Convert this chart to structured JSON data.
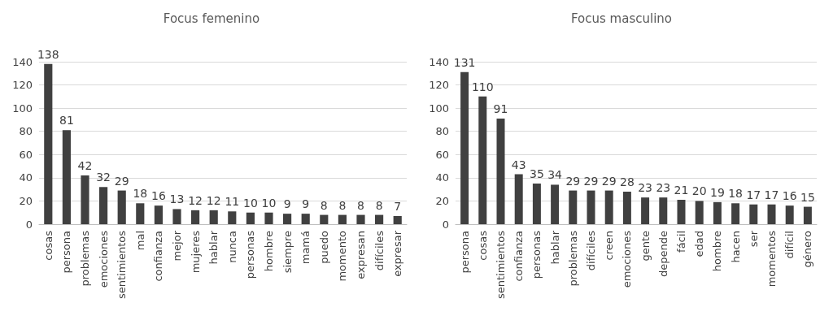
{
  "chart_data": [
    {
      "type": "bar",
      "title": "Focus femenino",
      "categories": [
        "cosas",
        "persona",
        "problemas",
        "emociones",
        "sentimientos",
        "mal",
        "confianza",
        "mejor",
        "mujeres",
        "hablar",
        "nunca",
        "personas",
        "hombre",
        "siempre",
        "mamá",
        "puedo",
        "momento",
        "expresan",
        "difíciles",
        "expresar"
      ],
      "values": [
        138,
        81,
        42,
        32,
        29,
        18,
        16,
        13,
        12,
        12,
        11,
        10,
        10,
        9,
        9,
        8,
        8,
        8,
        8,
        7
      ],
      "color": "#404040",
      "ylim": [
        0,
        140
      ],
      "yticks": [
        0,
        20,
        40,
        60,
        80,
        100,
        120,
        140
      ],
      "grid": "y",
      "data_labels": true
    },
    {
      "type": "bar",
      "title": "Focus masculino",
      "categories": [
        "persona",
        "cosas",
        "sentimientos",
        "confianza",
        "personas",
        "hablar",
        "problemas",
        "difíciles",
        "creen",
        "emociones",
        "gente",
        "depende",
        "fácil",
        "edad",
        "hombre",
        "hacen",
        "ser",
        "momentos",
        "difícil",
        "género"
      ],
      "values": [
        131,
        110,
        91,
        43,
        35,
        34,
        29,
        29,
        29,
        28,
        23,
        23,
        21,
        20,
        19,
        18,
        17,
        17,
        16,
        15
      ],
      "color": "#404040",
      "ylim": [
        0,
        140
      ],
      "yticks": [
        0,
        20,
        40,
        60,
        80,
        100,
        120,
        140
      ],
      "grid": "y",
      "data_labels": true
    }
  ]
}
